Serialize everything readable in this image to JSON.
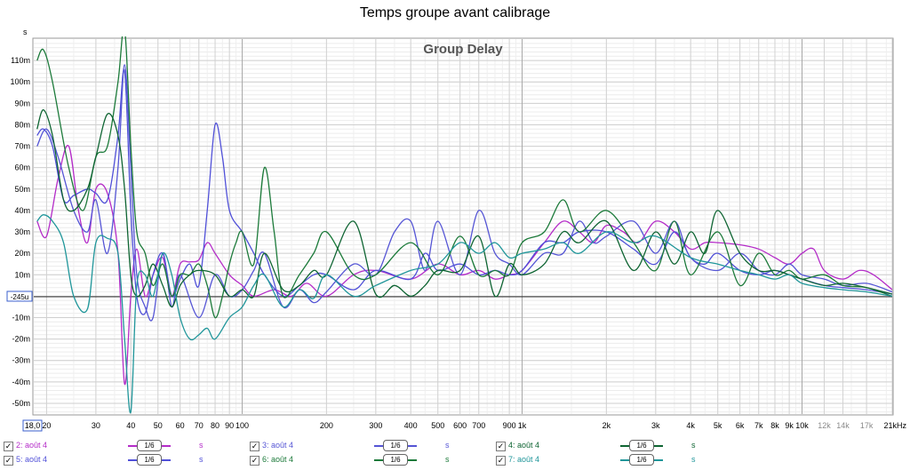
{
  "title": "Temps groupe avant calibrage",
  "chart_data": {
    "type": "line",
    "title": "Temps groupe avant calibrage",
    "subtitle": "Group Delay",
    "ylabel": "s",
    "xscale": "log",
    "xlim": [
      18.0,
      21000
    ],
    "ylim": [
      -0.055,
      0.12
    ],
    "grid": true,
    "reference_line": {
      "value": -0.000245,
      "label": "-245u"
    },
    "x_start_label": "18,0",
    "x_ticks": [
      {
        "v": 20,
        "label": "20"
      },
      {
        "v": 30,
        "label": "30"
      },
      {
        "v": 40,
        "label": "40"
      },
      {
        "v": 50,
        "label": "50"
      },
      {
        "v": 60,
        "label": "60"
      },
      {
        "v": 70,
        "label": "70"
      },
      {
        "v": 80,
        "label": "80"
      },
      {
        "v": 90,
        "label": "90"
      },
      {
        "v": 100,
        "label": "100"
      },
      {
        "v": 200,
        "label": "200"
      },
      {
        "v": 300,
        "label": "300"
      },
      {
        "v": 400,
        "label": "400"
      },
      {
        "v": 500,
        "label": "500"
      },
      {
        "v": 600,
        "label": "600"
      },
      {
        "v": 700,
        "label": "700"
      },
      {
        "v": 900,
        "label": "900"
      },
      {
        "v": 1000,
        "label": "1k"
      },
      {
        "v": 2000,
        "label": "2k"
      },
      {
        "v": 3000,
        "label": "3k"
      },
      {
        "v": 4000,
        "label": "4k"
      },
      {
        "v": 5000,
        "label": "5k"
      },
      {
        "v": 6000,
        "label": "6k"
      },
      {
        "v": 7000,
        "label": "7k"
      },
      {
        "v": 8000,
        "label": "8k"
      },
      {
        "v": 9000,
        "label": "9k"
      },
      {
        "v": 10000,
        "label": "10k"
      },
      {
        "v": 12000,
        "label": "12k",
        "muted": true
      },
      {
        "v": 14000,
        "label": "14k",
        "muted": true
      },
      {
        "v": 17000,
        "label": "17k",
        "muted": true
      },
      {
        "v": 21000,
        "label": "21kHz"
      }
    ],
    "y_ticks": [
      {
        "v": 0.11,
        "label": "110m"
      },
      {
        "v": 0.1,
        "label": "100m"
      },
      {
        "v": 0.09,
        "label": "90m"
      },
      {
        "v": 0.08,
        "label": "80m"
      },
      {
        "v": 0.07,
        "label": "70m"
      },
      {
        "v": 0.06,
        "label": "60m"
      },
      {
        "v": 0.05,
        "label": "50m"
      },
      {
        "v": 0.04,
        "label": "40m"
      },
      {
        "v": 0.03,
        "label": "30m"
      },
      {
        "v": 0.02,
        "label": "20m"
      },
      {
        "v": 0.01,
        "label": "10m"
      },
      {
        "v": -0.01,
        "label": "-10m"
      },
      {
        "v": -0.02,
        "label": "-20m"
      },
      {
        "v": -0.03,
        "label": "-30m"
      },
      {
        "v": -0.04,
        "label": "-40m"
      },
      {
        "v": -0.05,
        "label": "-50m"
      }
    ],
    "series": [
      {
        "name": "2: août 4",
        "color": "#b42cc8",
        "x": [
          18.5,
          20,
          22,
          24,
          26,
          28,
          30,
          33,
          36,
          38,
          40,
          42,
          45,
          48,
          52,
          56,
          60,
          65,
          70,
          75,
          80,
          90,
          100,
          110,
          130,
          150,
          170,
          200,
          250,
          300,
          400,
          500,
          600,
          700,
          800,
          900,
          1000,
          1200,
          1400,
          1600,
          1800,
          2000,
          2300,
          2600,
          3000,
          3500,
          4000,
          4500,
          5000,
          6000,
          7000,
          8000,
          9000,
          10000,
          11000,
          12000,
          14000,
          16000,
          18000,
          21000
        ],
        "y": [
          0.035,
          0.028,
          0.055,
          0.07,
          0.04,
          0.025,
          0.05,
          0.048,
          0.02,
          -0.041,
          0.0,
          0.022,
          0.0,
          0.01,
          0.018,
          0.0,
          0.015,
          0.016,
          0.017,
          0.025,
          0.02,
          0.01,
          0.005,
          0.0,
          0.003,
          0.0,
          0.006,
          0.0,
          0.01,
          0.012,
          0.008,
          0.015,
          0.01,
          0.012,
          0.008,
          0.01,
          0.012,
          0.025,
          0.035,
          0.03,
          0.025,
          0.033,
          0.03,
          0.025,
          0.035,
          0.03,
          0.022,
          0.025,
          0.025,
          0.024,
          0.022,
          0.018,
          0.015,
          0.02,
          0.022,
          0.012,
          0.008,
          0.012,
          0.01,
          0.003
        ]
      },
      {
        "name": "5: août 4",
        "color": "#5050d8",
        "x": [
          18.5,
          19.5,
          21,
          23,
          25,
          28,
          30,
          33,
          36,
          38,
          40,
          42,
          45,
          48,
          52,
          56,
          60,
          65,
          70,
          75,
          80,
          85,
          90,
          100,
          110,
          120,
          140,
          160,
          180,
          200,
          250,
          300,
          400,
          450,
          500,
          600,
          700,
          800,
          900,
          1000,
          1200,
          1400,
          1600,
          2000,
          2500,
          3000,
          3500,
          4000,
          4500,
          5000,
          6000,
          7000,
          8000,
          9000,
          10000,
          12000,
          14000,
          17000,
          21000
        ],
        "y": [
          0.075,
          0.078,
          0.07,
          0.045,
          0.047,
          0.05,
          0.048,
          0.045,
          0.075,
          0.105,
          0.04,
          0.0,
          -0.008,
          0.01,
          0.02,
          0.0,
          0.008,
          0.015,
          0.005,
          0.04,
          0.08,
          0.065,
          0.04,
          0.03,
          0.02,
          0.01,
          0.0,
          0.005,
          0.01,
          0.01,
          0.003,
          0.012,
          0.008,
          0.02,
          0.012,
          0.015,
          0.01,
          0.012,
          0.01,
          0.012,
          0.025,
          0.025,
          0.03,
          0.03,
          0.022,
          0.015,
          0.03,
          0.018,
          0.015,
          0.02,
          0.012,
          0.01,
          0.012,
          0.01,
          0.008,
          0.005,
          0.004,
          0.003,
          0.001
        ]
      },
      {
        "name": "3: août 4",
        "color": "#5555d5",
        "x": [
          18.5,
          20,
          22,
          25,
          28,
          30,
          33,
          36,
          38,
          40,
          42,
          45,
          48,
          52,
          56,
          60,
          70,
          80,
          90,
          100,
          110,
          120,
          140,
          160,
          180,
          200,
          250,
          300,
          350,
          400,
          450,
          500,
          600,
          700,
          800,
          900,
          1000,
          1200,
          1400,
          1600,
          1800,
          2000,
          2500,
          3000,
          3500,
          4000,
          5000,
          6000,
          7000,
          8000,
          9000,
          10000,
          12000,
          14000,
          17000,
          21000
        ],
        "y": [
          0.07,
          0.078,
          0.065,
          0.04,
          0.03,
          0.045,
          0.02,
          0.06,
          0.108,
          0.06,
          0.01,
          -0.005,
          -0.01,
          0.02,
          -0.005,
          0.01,
          -0.01,
          0.01,
          0.0,
          0.003,
          0.012,
          0.02,
          -0.005,
          0.003,
          -0.003,
          0.002,
          0.015,
          0.01,
          0.03,
          0.035,
          0.012,
          0.035,
          0.01,
          0.04,
          0.02,
          0.015,
          0.01,
          0.02,
          0.02,
          0.035,
          0.025,
          0.028,
          0.035,
          0.02,
          0.035,
          0.018,
          0.012,
          0.02,
          0.012,
          0.01,
          0.015,
          0.01,
          0.008,
          0.005,
          0.006,
          0.002
        ]
      },
      {
        "name": "6: août 4",
        "color": "#1c7a3a",
        "x": [
          18.5,
          19.5,
          21,
          24,
          27,
          30,
          33,
          36,
          38,
          40,
          42,
          45,
          48,
          52,
          56,
          60,
          65,
          70,
          75,
          80,
          85,
          90,
          95,
          100,
          110,
          120,
          130,
          140,
          160,
          180,
          200,
          250,
          300,
          400,
          500,
          600,
          700,
          800,
          900,
          1000,
          1200,
          1400,
          1600,
          2000,
          2500,
          3000,
          3500,
          4000,
          5000,
          6000,
          7000,
          8000,
          9000,
          10000,
          12000,
          14000,
          17000,
          21000
        ],
        "y": [
          0.11,
          0.115,
          0.1,
          0.06,
          0.04,
          0.065,
          0.07,
          0.1,
          0.125,
          0.07,
          0.03,
          0.02,
          0.005,
          0.015,
          0.0,
          0.01,
          0.01,
          0.015,
          0.005,
          -0.01,
          0.0,
          0.015,
          0.025,
          0.03,
          0.015,
          0.06,
          0.03,
          0.0,
          0.01,
          0.02,
          0.03,
          0.01,
          0.01,
          0.025,
          0.01,
          0.028,
          0.01,
          0.012,
          0.01,
          0.025,
          0.03,
          0.045,
          0.03,
          0.04,
          0.025,
          0.012,
          0.035,
          0.01,
          0.03,
          0.005,
          0.02,
          0.01,
          0.012,
          0.008,
          0.01,
          0.005,
          0.004,
          0.0
        ]
      },
      {
        "name": "4: août 4",
        "color": "#0e6432",
        "x": [
          18.5,
          19.5,
          21,
          23,
          25,
          28,
          30,
          33,
          36,
          38,
          40,
          42,
          45,
          48,
          52,
          56,
          60,
          65,
          70,
          80,
          90,
          100,
          110,
          120,
          140,
          160,
          180,
          200,
          250,
          300,
          350,
          400,
          450,
          500,
          600,
          700,
          800,
          900,
          1000,
          1200,
          1400,
          1600,
          2000,
          2500,
          3000,
          3500,
          4000,
          4500,
          5000,
          6000,
          7000,
          8000,
          9000,
          10000,
          12000,
          14000,
          17000,
          21000
        ],
        "y": [
          0.078,
          0.087,
          0.075,
          0.045,
          0.04,
          0.05,
          0.065,
          0.085,
          0.075,
          0.05,
          0.01,
          0.0,
          0.005,
          0.015,
          0.005,
          -0.005,
          0.005,
          0.01,
          0.012,
          0.01,
          0.0,
          0.003,
          0.0,
          0.02,
          0.003,
          0.005,
          0.012,
          0.01,
          0.035,
          0.001,
          0.005,
          0.0,
          0.005,
          0.012,
          0.012,
          0.028,
          0.0,
          0.015,
          0.01,
          0.015,
          0.03,
          0.025,
          0.035,
          0.012,
          0.03,
          0.015,
          0.03,
          0.02,
          0.04,
          0.02,
          0.012,
          0.012,
          0.01,
          0.008,
          0.005,
          0.006,
          0.004,
          0.001
        ]
      },
      {
        "name": "7: août 4",
        "color": "#20969a",
        "x": [
          18.5,
          19.5,
          21,
          23,
          25,
          28,
          30,
          33,
          36,
          38,
          40,
          42,
          45,
          48,
          52,
          56,
          60,
          65,
          70,
          75,
          80,
          90,
          100,
          110,
          120,
          140,
          160,
          180,
          200,
          250,
          300,
          400,
          500,
          600,
          700,
          800,
          900,
          1000,
          1200,
          1400,
          1600,
          2000,
          2500,
          3000,
          4000,
          5000,
          6000,
          7000,
          8000,
          9000,
          10000,
          12000,
          14000,
          17000,
          21000
        ],
        "y": [
          0.035,
          0.038,
          0.035,
          0.025,
          0.0,
          -0.006,
          0.025,
          0.027,
          0.02,
          -0.02,
          -0.054,
          0.005,
          0.01,
          0.0,
          0.02,
          0.01,
          -0.01,
          -0.02,
          -0.018,
          -0.015,
          -0.02,
          -0.01,
          -0.005,
          0.005,
          0.01,
          -0.005,
          0.003,
          -0.001,
          0.01,
          0.0,
          0.005,
          0.012,
          0.015,
          0.025,
          0.02,
          0.025,
          0.018,
          0.02,
          0.022,
          0.025,
          0.02,
          0.03,
          0.025,
          0.028,
          0.018,
          0.015,
          0.012,
          0.01,
          0.008,
          0.01,
          0.006,
          0.004,
          0.003,
          0.002,
          0.0
        ]
      }
    ]
  },
  "legend": [
    {
      "label": "2: août 4",
      "smoothing": "1/6",
      "unit": "s",
      "color": "#b42cc8",
      "checked": true
    },
    {
      "label": "3: août 4",
      "smoothing": "1/6",
      "unit": "s",
      "color": "#5555d5",
      "checked": true
    },
    {
      "label": "4: août 4",
      "smoothing": "1/6",
      "unit": "s",
      "color": "#0e6432",
      "checked": true
    },
    {
      "label": "5: août 4",
      "smoothing": "1/6",
      "unit": "s",
      "color": "#5050d8",
      "checked": true
    },
    {
      "label": "6: août 4",
      "smoothing": "1/6",
      "unit": "s",
      "color": "#1c7a3a",
      "checked": true
    },
    {
      "label": "7: août 4",
      "smoothing": "1/6",
      "unit": "s",
      "color": "#20969a",
      "checked": true
    }
  ],
  "check_glyph": "✓"
}
